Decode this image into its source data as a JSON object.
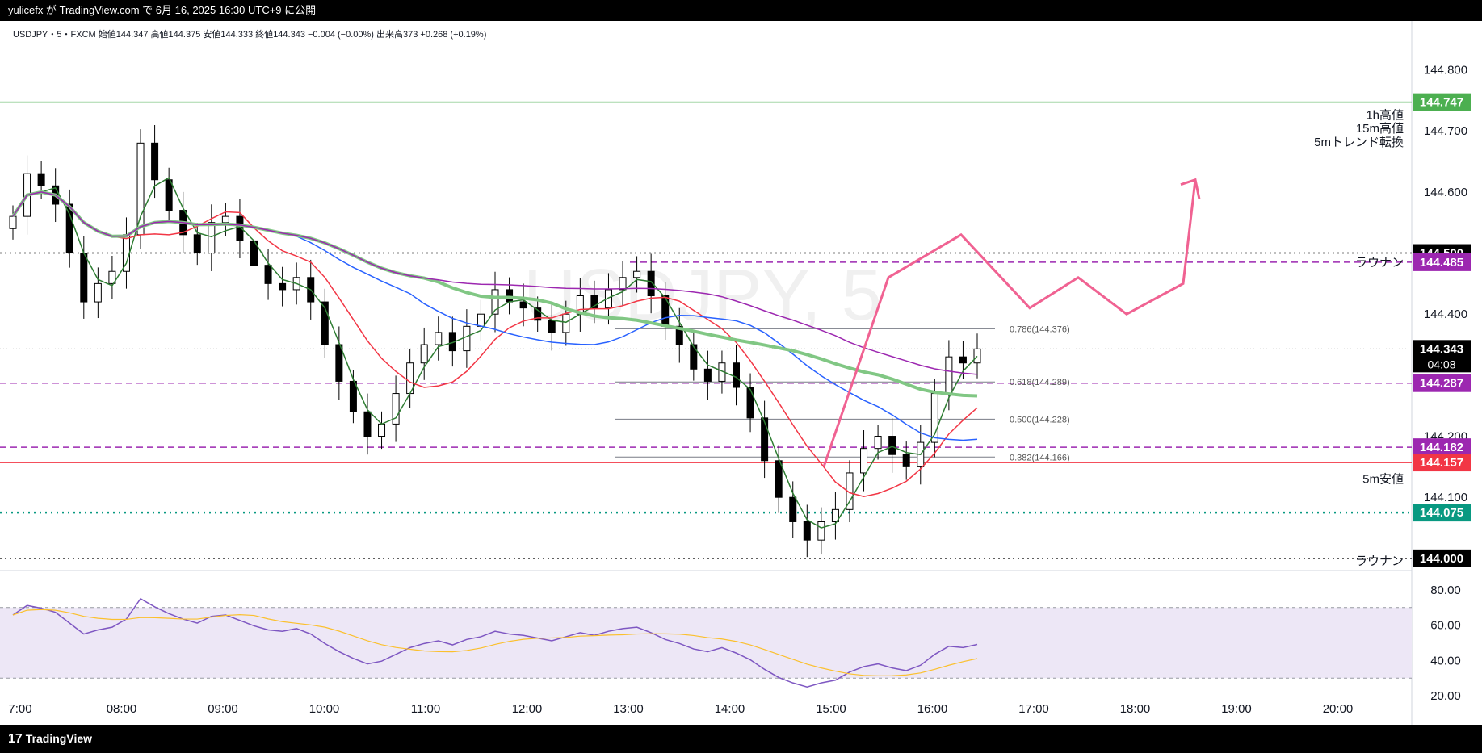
{
  "header": {
    "publish_text": "yulicefx が TradingView.com で 6月 16, 2025 16:30 UTC+9 に公開"
  },
  "ohlc_text": "USDJPY・5・FXCM  始値144.347  高値144.375  安値144.333  終値144.343  −0.004 (−0.00%)  出来高373  +0.268 (+0.19%)",
  "watermark": "USDJPY, 5",
  "footer": {
    "logo_text": "TradingView",
    "logo_mark": "17"
  },
  "colors": {
    "bull": "#ffffff",
    "bear": "#000000",
    "green_line": "#4caf50",
    "red_line": "#f23645",
    "purple": "#9c27b0",
    "teal": "#089981",
    "pink": "#f06292"
  },
  "chart_data": {
    "type": "candlestick",
    "symbol": "USDJPY",
    "timeframe": "5",
    "ylim": [
      143.98,
      144.88
    ],
    "x_ticks": [
      "7:00",
      "08:00",
      "09:00",
      "10:00",
      "11:00",
      "12:00",
      "13:00",
      "14:00",
      "15:00",
      "16:00",
      "17:00",
      "18:00",
      "19:00",
      "20:00"
    ],
    "y_ticks": [
      "144.800",
      "144.700",
      "144.600",
      "144.400",
      "144.200",
      "144.100"
    ],
    "price_tags": [
      {
        "label": "144.747",
        "value": 144.747,
        "color": "#4caf50"
      },
      {
        "label": "144.500",
        "value": 144.5,
        "color": "#000000"
      },
      {
        "label": "144.485",
        "value": 144.485,
        "color": "#9c27b0"
      },
      {
        "label": "144.343",
        "value": 144.343,
        "color": "#000000",
        "sub": "04:08"
      },
      {
        "label": "144.287",
        "value": 144.287,
        "color": "#9c27b0"
      },
      {
        "label": "144.182",
        "value": 144.182,
        "color": "#9c27b0"
      },
      {
        "label": "144.157",
        "value": 144.157,
        "color": "#f23645"
      },
      {
        "label": "144.075",
        "value": 144.075,
        "color": "#089981"
      },
      {
        "label": "144.000",
        "value": 144.0,
        "color": "#000000"
      }
    ],
    "annotations": [
      {
        "text": "1h高値",
        "value": 144.726
      },
      {
        "text": "15m高値",
        "value": 144.704
      },
      {
        "text": "5mトレンド転換",
        "value": 144.682
      },
      {
        "text": "ラウナン",
        "value": 144.485
      },
      {
        "text": "5m安値",
        "value": 144.13
      },
      {
        "text": "ラウナン",
        "value": 143.996
      }
    ],
    "fib_levels": [
      {
        "label": "0.786(144.376)",
        "value": 144.376
      },
      {
        "label": "0.618(144.289)",
        "value": 144.289
      },
      {
        "label": "0.500(144.228)",
        "value": 144.228
      },
      {
        "label": "0.382(144.166)",
        "value": 144.166
      }
    ],
    "series_close": [
      144.56,
      144.63,
      144.61,
      144.58,
      144.5,
      144.42,
      144.45,
      144.47,
      144.53,
      144.68,
      144.62,
      144.57,
      144.53,
      144.5,
      144.55,
      144.56,
      144.52,
      144.48,
      144.45,
      144.44,
      144.46,
      144.42,
      144.35,
      144.29,
      144.24,
      144.2,
      144.22,
      144.27,
      144.32,
      144.35,
      144.37,
      144.34,
      144.38,
      144.4,
      144.44,
      144.42,
      144.41,
      144.39,
      144.37,
      144.4,
      144.43,
      144.41,
      144.44,
      144.46,
      144.47,
      144.43,
      144.38,
      144.35,
      144.31,
      144.29,
      144.32,
      144.28,
      144.23,
      144.16,
      144.1,
      144.06,
      144.03,
      144.06,
      144.08,
      144.14,
      144.18,
      144.2,
      144.17,
      144.15,
      144.19,
      144.27,
      144.33,
      144.32,
      144.343
    ],
    "rsi": {
      "ylim": [
        10,
        90
      ],
      "ticks": [
        "80.00",
        "60.00",
        "40.00",
        "20.00"
      ],
      "band": [
        30,
        70
      ]
    }
  }
}
